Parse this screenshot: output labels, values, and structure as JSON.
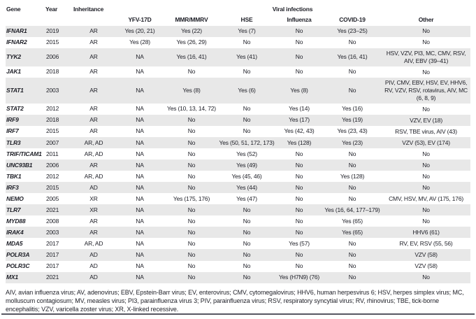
{
  "header": {
    "gene": "Gene",
    "year": "Year",
    "inheritance": "Inheritance",
    "viral_infections": "Viral infections",
    "sub": [
      "YFV-17D",
      "MMR/MMRV",
      "HSE",
      "Influenza",
      "COVID-19",
      "Other"
    ]
  },
  "table": {
    "rows": [
      {
        "gene": "IFNAR1",
        "year": "2019",
        "inheritance": "AR",
        "yfv": "Yes (20, 21)",
        "mmr": "Yes (22)",
        "hse": "Yes (7)",
        "influenza": "No",
        "covid": "Yes (23–25)",
        "other": "No"
      },
      {
        "gene": "IFNAR2",
        "year": "2015",
        "inheritance": "AR",
        "yfv": "Yes (28)",
        "mmr": "Yes (26, 29)",
        "hse": "No",
        "influenza": "No",
        "covid": "No",
        "other": "No"
      },
      {
        "gene": "TYK2",
        "year": "2006",
        "inheritance": "AR",
        "yfv": "NA",
        "mmr": "Yes (16, 41)",
        "hse": "Yes (41)",
        "influenza": "No",
        "covid": "Yes (16, 41)",
        "other": "HSV, VZV, PI3, MC, CMV, RSV, AIV, EBV (39–41)"
      },
      {
        "gene": "JAK1",
        "year": "2018",
        "inheritance": "AR",
        "yfv": "NA",
        "mmr": "No",
        "hse": "No",
        "influenza": "No",
        "covid": "No",
        "other": "No"
      },
      {
        "gene": "STAT1",
        "year": "2003",
        "inheritance": "AR",
        "yfv": "NA",
        "mmr": "Yes (8)",
        "hse": "Yes (6)",
        "influenza": "Yes (8)",
        "covid": "No",
        "other": "PIV, CMV, EBV, HSV, EV, HHV6, RV, VZV, RSV, rotavirus, AIV, MC (6, 8, 9)"
      },
      {
        "gene": "STAT2",
        "year": "2012",
        "inheritance": "AR",
        "yfv": "NA",
        "mmr": "Yes (10, 13, 14, 72)",
        "hse": "No",
        "influenza": "Yes (14)",
        "covid": "Yes (16)",
        "other": "No"
      },
      {
        "gene": "IRF9",
        "year": "2018",
        "inheritance": "AR",
        "yfv": "NA",
        "mmr": "No",
        "hse": "No",
        "influenza": "Yes (17)",
        "covid": "Yes (19)",
        "other": "VZV, EV (18)"
      },
      {
        "gene": "IRF7",
        "year": "2015",
        "inheritance": "AR",
        "yfv": "NA",
        "mmr": "No",
        "hse": "No",
        "influenza": "Yes (42, 43)",
        "covid": "Yes (23, 43)",
        "other": "RSV, TBE virus, AIV (43)"
      },
      {
        "gene": "TLR3",
        "year": "2007",
        "inheritance": "AR, AD",
        "yfv": "NA",
        "mmr": "No",
        "hse": "Yes (50, 51, 172, 173)",
        "influenza": "Yes (128)",
        "covid": "Yes (23)",
        "other": "VZV (53), EV (174)"
      },
      {
        "gene": "TRIF/TICAM1",
        "year": "2011",
        "inheritance": "AR, AD",
        "yfv": "NA",
        "mmr": "No",
        "hse": "Yes (52)",
        "influenza": "No",
        "covid": "No",
        "other": "No"
      },
      {
        "gene": "UNC93B1",
        "year": "2006",
        "inheritance": "AR",
        "yfv": "NA",
        "mmr": "No",
        "hse": "Yes (49)",
        "influenza": "No",
        "covid": "No",
        "other": "No"
      },
      {
        "gene": "TBK1",
        "year": "2012",
        "inheritance": "AR, AD",
        "yfv": "NA",
        "mmr": "No",
        "hse": "Yes (45, 46)",
        "influenza": "No",
        "covid": "Yes (128)",
        "other": "No"
      },
      {
        "gene": "IRF3",
        "year": "2015",
        "inheritance": "AD",
        "yfv": "NA",
        "mmr": "No",
        "hse": "Yes (44)",
        "influenza": "No",
        "covid": "No",
        "other": "No"
      },
      {
        "gene": "NEMO",
        "year": "2005",
        "inheritance": "XR",
        "yfv": "NA",
        "mmr": "Yes (175, 176)",
        "hse": "Yes (47)",
        "influenza": "No",
        "covid": "No",
        "other": "CMV, HSV, MV, AV (175, 176)"
      },
      {
        "gene": "TLR7",
        "year": "2021",
        "inheritance": "XR",
        "yfv": "NA",
        "mmr": "No",
        "hse": "No",
        "influenza": "No",
        "covid": "Yes (16, 64, 177–179)",
        "other": "No"
      },
      {
        "gene": "MYD88",
        "year": "2008",
        "inheritance": "AR",
        "yfv": "NA",
        "mmr": "No",
        "hse": "No",
        "influenza": "No",
        "covid": "Yes (65)",
        "other": "No"
      },
      {
        "gene": "IRAK4",
        "year": "2003",
        "inheritance": "AR",
        "yfv": "NA",
        "mmr": "No",
        "hse": "No",
        "influenza": "No",
        "covid": "Yes (65)",
        "other": "HHV6 (61)"
      },
      {
        "gene": "MDA5",
        "year": "2017",
        "inheritance": "AR, AD",
        "yfv": "NA",
        "mmr": "No",
        "hse": "No",
        "influenza": "Yes (57)",
        "covid": "No",
        "other": "RV, EV, RSV (55, 56)"
      },
      {
        "gene": "POLR3A",
        "year": "2017",
        "inheritance": "AD",
        "yfv": "NA",
        "mmr": "No",
        "hse": "No",
        "influenza": "No",
        "covid": "No",
        "other": "VZV (58)"
      },
      {
        "gene": "POLR3C",
        "year": "2017",
        "inheritance": "AD",
        "yfv": "NA",
        "mmr": "No",
        "hse": "No",
        "influenza": "No",
        "covid": "No",
        "other": "VZV (58)"
      },
      {
        "gene": "MX1",
        "year": "2021",
        "inheritance": "AD",
        "yfv": "NA",
        "mmr": "No",
        "hse": "No",
        "influenza": "Yes (H7N9) (76)",
        "covid": "No",
        "other": "No"
      }
    ]
  },
  "footnote": "AIV, avian influenza virus; AV, adenovirus; EBV, Epstein-Barr virus; EV, enterovirus; CMV, cytomegalovirus; HHV6, human herpesvirus 6; HSV, herpes simplex virus; MC, molluscum contagiosum; MV, measles virus; PI3, parainfluenza virus 3; PIV, parainfluenza virus; RSV, respiratory syncytial virus; RV, rhinovirus; TBE, tick-borne encephalitis; VZV, varicella zoster virus; XR, X-linked recessive.",
  "colors": {
    "row_stripe": "#e8e8e8",
    "text": "#1e1f27",
    "bottom_rule": "#585862"
  }
}
